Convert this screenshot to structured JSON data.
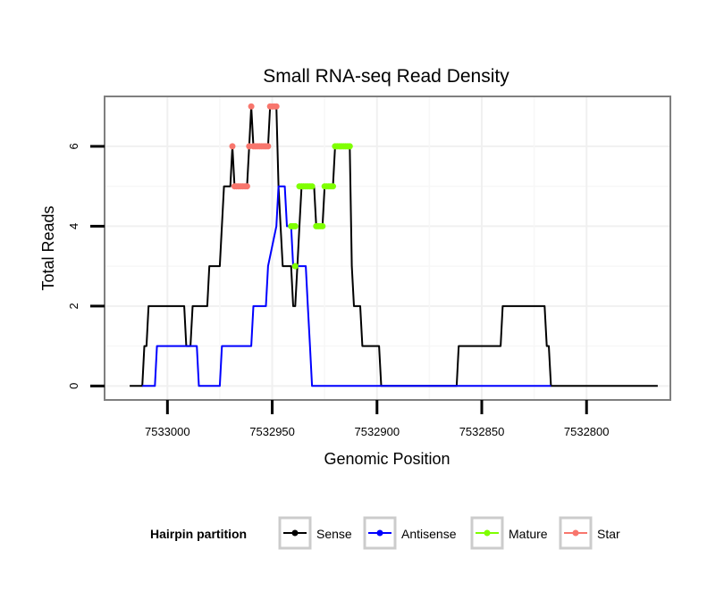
{
  "chart_data": {
    "type": "line",
    "title": "Small RNA-seq Read Density",
    "xlabel": "Genomic Position",
    "ylabel": "Total Reads",
    "xlim": [
      7533030,
      7532760
    ],
    "ylim": [
      -0.35,
      7.25
    ],
    "x_reversed": true,
    "grid": true,
    "x_ticks": [
      7533000,
      7532950,
      7532900,
      7532850,
      7532800
    ],
    "x_tick_labels": [
      "7533000",
      "7532950",
      "7532900",
      "7532850",
      "7532800"
    ],
    "y_ticks": [
      0,
      2,
      4,
      6
    ],
    "y_tick_labels": [
      "0",
      "2",
      "4",
      "6"
    ],
    "legend": {
      "title": "Hairpin partition",
      "position": "bottom",
      "entries": [
        {
          "name": "Sense",
          "color": "#000000"
        },
        {
          "name": "Antisense",
          "color": "#0000ff"
        },
        {
          "name": "Mature",
          "color": "#7fff00"
        },
        {
          "name": "Star",
          "color": "#f8766d"
        }
      ]
    },
    "series": [
      {
        "name": "Sense",
        "color": "#000000",
        "points": [
          [
            7533018,
            0
          ],
          [
            7533012,
            0
          ],
          [
            7533011,
            1
          ],
          [
            7533010,
            1
          ],
          [
            7533009,
            2
          ],
          [
            7532992,
            2
          ],
          [
            7532991,
            1
          ],
          [
            7532989,
            1
          ],
          [
            7532988,
            2
          ],
          [
            7532981,
            2
          ],
          [
            7532980,
            3
          ],
          [
            7532975,
            3
          ],
          [
            7532973,
            5
          ],
          [
            7532970,
            5
          ],
          [
            7532969,
            6
          ],
          [
            7532968,
            5
          ],
          [
            7532962,
            5
          ],
          [
            7532961,
            6
          ],
          [
            7532960,
            7
          ],
          [
            7532959,
            6
          ],
          [
            7532952,
            6
          ],
          [
            7532951,
            7
          ],
          [
            7532948,
            7
          ],
          [
            7532947,
            5
          ],
          [
            7532946,
            4
          ],
          [
            7532945,
            3
          ],
          [
            7532941,
            3
          ],
          [
            7532940,
            2
          ],
          [
            7532939,
            2
          ],
          [
            7532938,
            3
          ],
          [
            7532937,
            4
          ],
          [
            7532936,
            5
          ],
          [
            7532930,
            5
          ],
          [
            7532929,
            4
          ],
          [
            7532926,
            4
          ],
          [
            7532925,
            5
          ],
          [
            7532921,
            5
          ],
          [
            7532920,
            6
          ],
          [
            7532913,
            6
          ],
          [
            7532912,
            3
          ],
          [
            7532911,
            2
          ],
          [
            7532908,
            2
          ],
          [
            7532907,
            1
          ],
          [
            7532899,
            1
          ],
          [
            7532898,
            0
          ],
          [
            7532862,
            0
          ],
          [
            7532861,
            1
          ],
          [
            7532841,
            1
          ],
          [
            7532840,
            2
          ],
          [
            7532820,
            2
          ],
          [
            7532819,
            1
          ],
          [
            7532818,
            1
          ],
          [
            7532817,
            0
          ],
          [
            7532766,
            0
          ]
        ]
      },
      {
        "name": "Antisense",
        "color": "#0000ff",
        "points": [
          [
            7533012,
            0
          ],
          [
            7533006,
            0
          ],
          [
            7533005,
            1
          ],
          [
            7532986,
            1
          ],
          [
            7532985,
            0
          ],
          [
            7532975,
            0
          ],
          [
            7532974,
            1
          ],
          [
            7532960,
            1
          ],
          [
            7532959,
            2
          ],
          [
            7532953,
            2
          ],
          [
            7532952,
            3
          ],
          [
            7532948,
            4
          ],
          [
            7532947,
            5
          ],
          [
            7532944,
            5
          ],
          [
            7532943,
            4
          ],
          [
            7532941,
            4
          ],
          [
            7532940,
            3
          ],
          [
            7532934,
            3
          ],
          [
            7532933,
            2
          ],
          [
            7532932,
            1
          ],
          [
            7532931,
            0
          ],
          [
            7532817,
            0
          ]
        ]
      },
      {
        "name": "Mature",
        "color": "#7fff00",
        "points": [
          [
            7532941,
            4
          ],
          [
            7532940,
            4
          ],
          [
            7532939,
            3
          ],
          [
            7532939,
            4
          ],
          [
            7532937,
            5
          ],
          [
            7532936,
            5
          ],
          [
            7532935,
            5
          ],
          [
            7532934,
            5
          ],
          [
            7532933,
            5
          ],
          [
            7532932,
            5
          ],
          [
            7532931,
            5
          ],
          [
            7532929,
            4
          ],
          [
            7532928,
            4
          ],
          [
            7532927,
            4
          ],
          [
            7532926,
            4
          ],
          [
            7532925,
            5
          ],
          [
            7532924,
            5
          ],
          [
            7532923,
            5
          ],
          [
            7532922,
            5
          ],
          [
            7532921,
            5
          ],
          [
            7532920,
            6
          ],
          [
            7532919,
            6
          ],
          [
            7532918,
            6
          ],
          [
            7532917,
            6
          ],
          [
            7532916,
            6
          ],
          [
            7532915,
            6
          ],
          [
            7532914,
            6
          ],
          [
            7532913,
            6
          ]
        ]
      },
      {
        "name": "Star",
        "color": "#f8766d",
        "points": [
          [
            7532969,
            6
          ],
          [
            7532968,
            5
          ],
          [
            7532967,
            5
          ],
          [
            7532966,
            5
          ],
          [
            7532965,
            5
          ],
          [
            7532964,
            5
          ],
          [
            7532963,
            5
          ],
          [
            7532962,
            5
          ],
          [
            7532961,
            6
          ],
          [
            7532960,
            7
          ],
          [
            7532959,
            6
          ],
          [
            7532958,
            6
          ],
          [
            7532957,
            6
          ],
          [
            7532956,
            6
          ],
          [
            7532955,
            6
          ],
          [
            7532954,
            6
          ],
          [
            7532953,
            6
          ],
          [
            7532952,
            6
          ],
          [
            7532951,
            7
          ],
          [
            7532950,
            7
          ],
          [
            7532949,
            7
          ],
          [
            7532948,
            7
          ]
        ]
      }
    ]
  }
}
